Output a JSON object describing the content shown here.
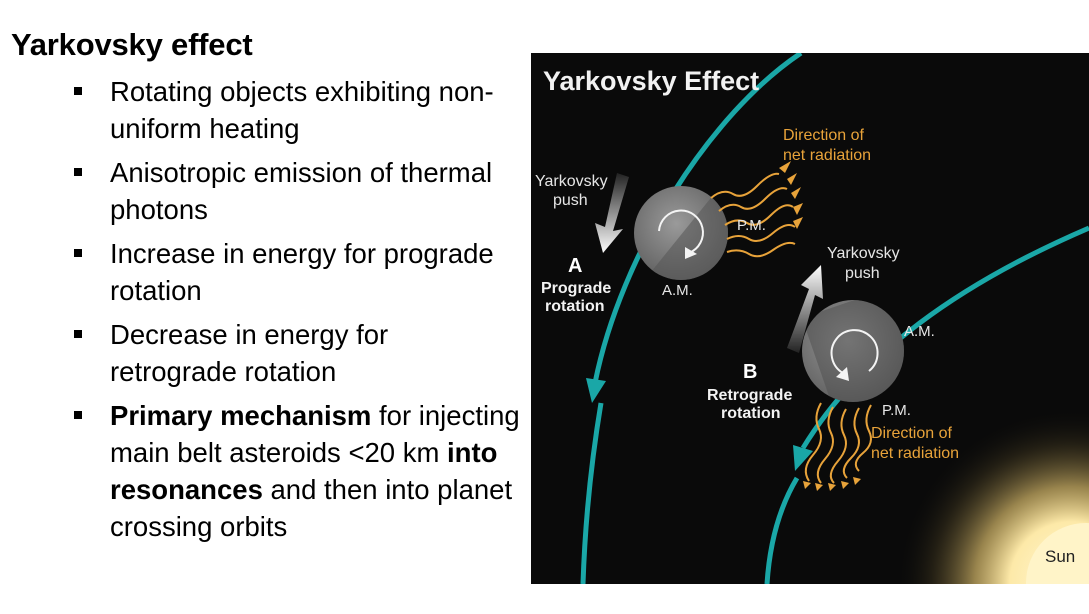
{
  "slide": {
    "title": "Yarkovsky effect",
    "bullets": [
      {
        "text": "Rotating objects exhibiting non-uniform heating"
      },
      {
        "text": "Anisotropic emission of thermal photons"
      },
      {
        "text": "Increase in energy for prograde rotation"
      },
      {
        "text": "Decrease in energy for retrograde rotation"
      },
      {
        "parts": {
          "p1": "Primary mechanism",
          "p2": " for injecting main belt asteroids <20 km ",
          "p3": "into resonances",
          "p4": " and then into planet crossing orbits"
        }
      }
    ]
  },
  "figure": {
    "title": "Yarkovsky Effect",
    "a": {
      "push_line1": "Yarkovsky",
      "push_line2": "push",
      "letter": "A",
      "rotation_line1": "Prograde",
      "rotation_line2": "rotation",
      "am": "A.M.",
      "pm": "P.M.",
      "dir_line1": "Direction of",
      "dir_line2": "net radiation"
    },
    "b": {
      "push_line1": "Yarkovsky",
      "push_line2": "push",
      "letter": "B",
      "rotation_line1": "Retrograde",
      "rotation_line2": "rotation",
      "am": "A.M.",
      "pm": "P.M.",
      "dir_line1": "Direction of",
      "dir_line2": "net radiation"
    },
    "sun": "Sun",
    "colors": {
      "background": "#0a0a0a",
      "orbit": "#1aa7a7",
      "radiation": "#e8a33a",
      "sun": "#fff2c2"
    }
  }
}
